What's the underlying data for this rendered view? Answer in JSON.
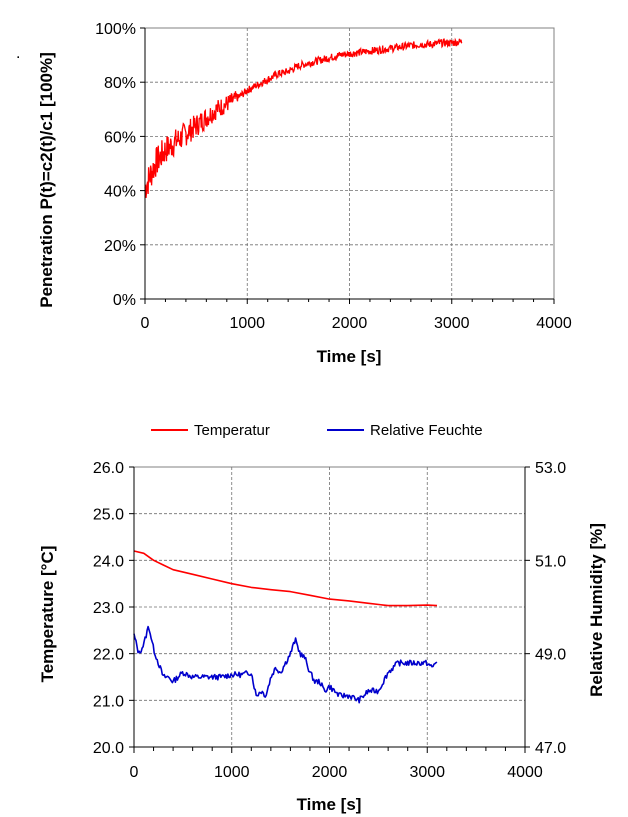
{
  "chart_data": [
    {
      "type": "line",
      "title": "",
      "xlabel": "Time [s]",
      "ylabel": "Penetration P(t)=c2(t)/c1 [100%]",
      "xlim": [
        0,
        4000
      ],
      "ylim": [
        0,
        100
      ],
      "xticks": [
        0,
        1000,
        2000,
        3000,
        4000
      ],
      "xtick_labels": [
        "0",
        "1000",
        "2000",
        "3000",
        "4000"
      ],
      "yticks": [
        0,
        20,
        40,
        60,
        80,
        100
      ],
      "ytick_labels": [
        "0%",
        "20%",
        "40%",
        "60%",
        "80%",
        "100%"
      ],
      "grid": true,
      "series": [
        {
          "name": "Penetration",
          "color": "#ff0000",
          "noisy": true,
          "x": [
            0,
            100,
            200,
            300,
            400,
            500,
            600,
            700,
            800,
            900,
            1000,
            1100,
            1200,
            1300,
            1400,
            1500,
            1600,
            1700,
            1800,
            1900,
            2000,
            2100,
            2200,
            2300,
            2400,
            2500,
            2600,
            2700,
            2800,
            2900,
            3000,
            3100
          ],
          "y": [
            41,
            50,
            55,
            58,
            61,
            64,
            67,
            70,
            72,
            74,
            77,
            79,
            81,
            83,
            84,
            86,
            87,
            88,
            89,
            90,
            90.5,
            91,
            91.5,
            92,
            92.5,
            93,
            93.5,
            94,
            94,
            94.5,
            94.5,
            95
          ]
        }
      ]
    },
    {
      "type": "line",
      "title": "",
      "xlabel": "Time [s]",
      "ylabel": "Temperature [°C]",
      "y2label": "Relative Humidity [%]",
      "xlim": [
        0,
        4000
      ],
      "ylim": [
        20,
        26
      ],
      "y2lim": [
        47,
        53
      ],
      "xticks": [
        0,
        1000,
        2000,
        3000,
        4000
      ],
      "xtick_labels": [
        "0",
        "1000",
        "2000",
        "3000",
        "4000"
      ],
      "yticks": [
        20,
        21,
        22,
        23,
        24,
        25,
        26
      ],
      "ytick_labels": [
        "20.0",
        "21.0",
        "22.0",
        "23.0",
        "24.0",
        "25.0",
        "26.0"
      ],
      "y2ticks": [
        47,
        49,
        51,
        53
      ],
      "y2tick_labels": [
        "47.0",
        "49.0",
        "51.0",
        "53.0"
      ],
      "grid": true,
      "legend": "top",
      "series": [
        {
          "name": "Temperatur",
          "color": "#ff0000",
          "axis": "left",
          "x": [
            0,
            100,
            200,
            300,
            400,
            600,
            800,
            1000,
            1200,
            1400,
            1600,
            1800,
            2000,
            2200,
            2400,
            2600,
            2800,
            3000,
            3100
          ],
          "y": [
            24.2,
            24.15,
            24.0,
            23.9,
            23.8,
            23.7,
            23.6,
            23.5,
            23.42,
            23.37,
            23.33,
            23.25,
            23.17,
            23.13,
            23.08,
            23.03,
            23.03,
            23.04,
            23.03
          ]
        },
        {
          "name": "Relative Feuchte",
          "color": "#0000cc",
          "axis": "right",
          "x": [
            0,
            50,
            100,
            150,
            200,
            250,
            300,
            350,
            400,
            500,
            600,
            700,
            800,
            900,
            1000,
            1100,
            1200,
            1250,
            1300,
            1350,
            1400,
            1450,
            1500,
            1550,
            1600,
            1650,
            1700,
            1750,
            1800,
            1850,
            1900,
            1950,
            2000,
            2100,
            2200,
            2300,
            2400,
            2500,
            2600,
            2700,
            2800,
            2900,
            3000,
            3050,
            3100
          ],
          "y": [
            49.4,
            49.0,
            49.2,
            49.6,
            49.1,
            48.8,
            48.5,
            48.5,
            48.4,
            48.6,
            48.5,
            48.5,
            48.5,
            48.5,
            48.55,
            48.55,
            48.6,
            48.1,
            48.2,
            48.1,
            48.5,
            48.7,
            48.6,
            48.8,
            49.0,
            49.3,
            49.0,
            48.9,
            48.6,
            48.4,
            48.4,
            48.2,
            48.3,
            48.1,
            48.1,
            48.0,
            48.2,
            48.2,
            48.6,
            48.8,
            48.8,
            48.8,
            48.8,
            48.7,
            48.85
          ]
        }
      ]
    }
  ],
  "marks": {
    "stray_dot": "."
  }
}
